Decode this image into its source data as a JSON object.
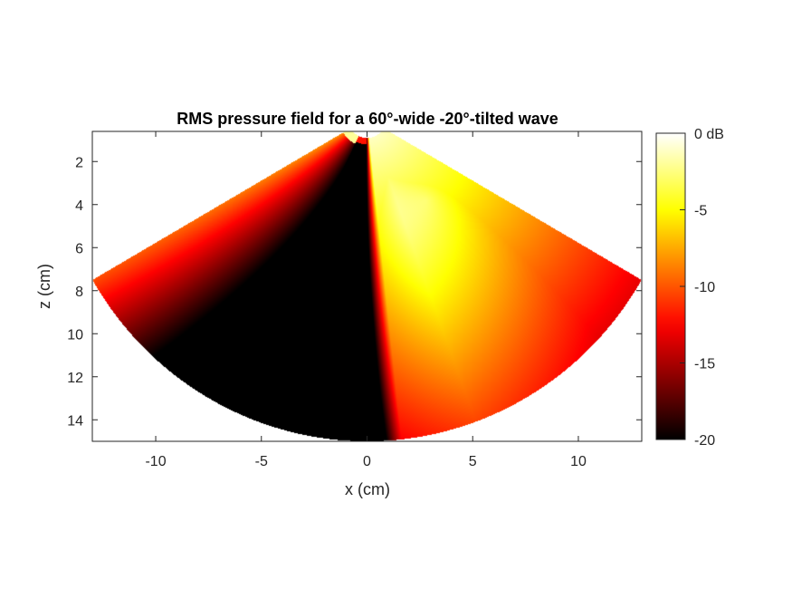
{
  "chart_data": {
    "type": "heatmap",
    "title": "RMS pressure field for a 60°-wide -20°-tilted wave",
    "xlabel": "x (cm)",
    "ylabel": "z (cm)",
    "xlim": [
      -13,
      13
    ],
    "ylim": [
      0.6,
      15
    ],
    "y_reversed": true,
    "x_ticks": [
      -10,
      -5,
      0,
      5,
      10
    ],
    "y_ticks": [
      2,
      4,
      6,
      8,
      10,
      12,
      14
    ],
    "colormap": "hot",
    "colorbar": {
      "range": [
        -20,
        0
      ],
      "ticks": [
        0,
        -5,
        -10,
        -15,
        -20
      ],
      "tick_labels": [
        "0 dB",
        "-5",
        "-10",
        "-15",
        "-20"
      ]
    },
    "sector": {
      "apex_z": 0,
      "inner_radius": 0.9,
      "outer_radius": 15,
      "half_angle_deg": 60,
      "tilt_deg": -20
    },
    "grid": false
  }
}
